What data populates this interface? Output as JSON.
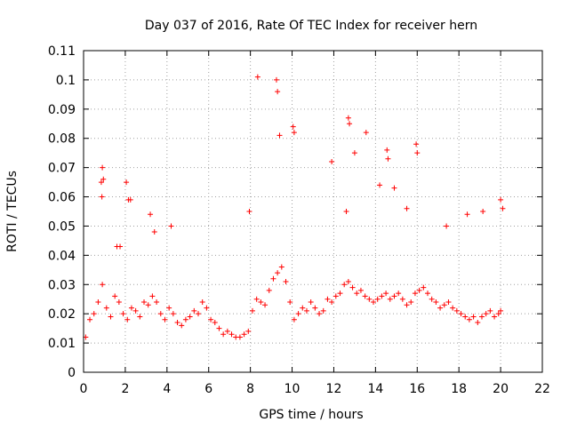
{
  "chart_data": {
    "type": "scatter",
    "title": "Day 037 of 2016, Rate Of TEC Index for receiver hern",
    "xlabel": "GPS time / hours",
    "ylabel": "ROTI / TECUs",
    "xlim": [
      0,
      22
    ],
    "ylim": [
      0,
      0.11
    ],
    "xticks": [
      "0",
      "2",
      "4",
      "6",
      "8",
      "10",
      "12",
      "14",
      "16",
      "18",
      "20",
      "22"
    ],
    "yticks": [
      "0",
      "0.01",
      "0.02",
      "0.03",
      "0.04",
      "0.05",
      "0.06",
      "0.07",
      "0.08",
      "0.09",
      "0.1",
      "0.11"
    ],
    "grid": true,
    "legend": "none",
    "marker": "plus",
    "color": "#ff0000",
    "series": [
      {
        "x": [
          0.1,
          0.3,
          0.5,
          0.7,
          0.9,
          1.1,
          1.3,
          1.5,
          1.7,
          1.9,
          2.1,
          2.3,
          2.5,
          2.7,
          2.9,
          3.1,
          3.3,
          3.5,
          3.7,
          3.9,
          4.1,
          4.3,
          4.5,
          4.7,
          4.9,
          5.1,
          5.3,
          5.5,
          5.7,
          5.9,
          6.1,
          6.3,
          6.5,
          6.7,
          6.9,
          7.1,
          7.3,
          7.5,
          7.7,
          7.9,
          8.1,
          8.3,
          8.5,
          8.7,
          8.9,
          9.1,
          9.3,
          9.5,
          9.7,
          9.9,
          10.1,
          10.3,
          10.5,
          10.7,
          10.9,
          11.1,
          11.3,
          11.5,
          11.7,
          11.9,
          12.1,
          12.3,
          12.5,
          12.7,
          12.9,
          13.1,
          13.3,
          13.5,
          13.7,
          13.9,
          14.1,
          14.3,
          14.5,
          14.7,
          14.9,
          15.1,
          15.3,
          15.5,
          15.7,
          15.9,
          16.1,
          16.3,
          16.5,
          16.7,
          16.9,
          17.1,
          17.3,
          17.5,
          17.7,
          17.9,
          18.1,
          18.3,
          18.5,
          18.7,
          18.9,
          19.1,
          19.3,
          19.5,
          19.7,
          19.9,
          20.0,
          0.85,
          0.9,
          0.88,
          0.95,
          2.05,
          2.15,
          2.25,
          8.35,
          9.25,
          9.3,
          9.4,
          10.05,
          10.1,
          12.7,
          12.75,
          13.55,
          14.55,
          14.6,
          15.95,
          16.0,
          4.2,
          1.6,
          1.75,
          3.2,
          3.4,
          7.95,
          11.9,
          12.6,
          13.0,
          14.2,
          14.9,
          15.5,
          17.4,
          18.4,
          19.15,
          20.0,
          20.1
        ],
        "y": [
          0.012,
          0.018,
          0.02,
          0.024,
          0.03,
          0.022,
          0.019,
          0.026,
          0.024,
          0.02,
          0.018,
          0.022,
          0.021,
          0.019,
          0.024,
          0.023,
          0.026,
          0.024,
          0.02,
          0.018,
          0.022,
          0.02,
          0.017,
          0.016,
          0.018,
          0.019,
          0.021,
          0.02,
          0.024,
          0.022,
          0.018,
          0.017,
          0.015,
          0.013,
          0.014,
          0.013,
          0.012,
          0.012,
          0.013,
          0.014,
          0.021,
          0.025,
          0.024,
          0.023,
          0.028,
          0.032,
          0.034,
          0.036,
          0.031,
          0.024,
          0.018,
          0.02,
          0.022,
          0.021,
          0.024,
          0.022,
          0.02,
          0.021,
          0.025,
          0.024,
          0.026,
          0.027,
          0.03,
          0.031,
          0.029,
          0.027,
          0.028,
          0.026,
          0.025,
          0.024,
          0.025,
          0.026,
          0.027,
          0.025,
          0.026,
          0.027,
          0.025,
          0.023,
          0.024,
          0.027,
          0.028,
          0.029,
          0.027,
          0.025,
          0.024,
          0.022,
          0.023,
          0.024,
          0.022,
          0.021,
          0.02,
          0.019,
          0.018,
          0.019,
          0.017,
          0.019,
          0.02,
          0.021,
          0.019,
          0.02,
          0.021,
          0.065,
          0.07,
          0.06,
          0.066,
          0.065,
          0.059,
          0.059,
          0.101,
          0.1,
          0.096,
          0.081,
          0.084,
          0.082,
          0.087,
          0.085,
          0.082,
          0.076,
          0.073,
          0.078,
          0.075,
          0.05,
          0.043,
          0.043,
          0.054,
          0.048,
          0.055,
          0.072,
          0.055,
          0.075,
          0.064,
          0.063,
          0.056,
          0.05,
          0.054,
          0.055,
          0.059,
          0.056
        ]
      }
    ]
  }
}
